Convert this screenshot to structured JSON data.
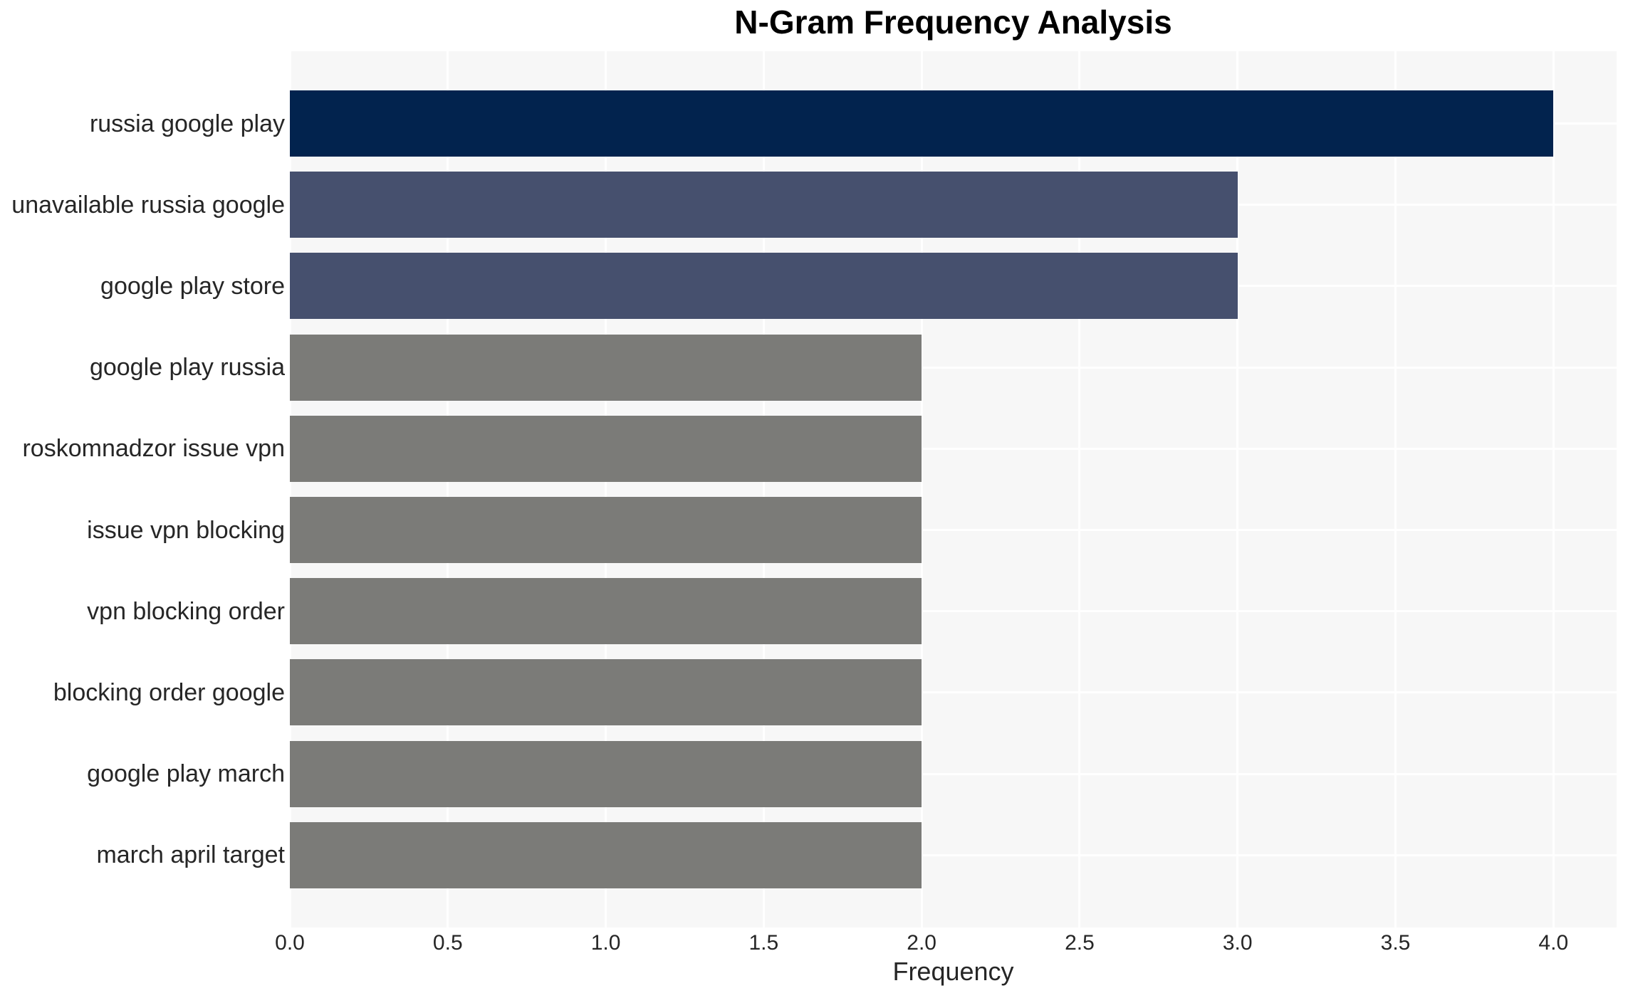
{
  "chart_data": {
    "type": "bar",
    "orientation": "horizontal",
    "title": "N-Gram Frequency Analysis",
    "xlabel": "Frequency",
    "ylabel": "",
    "categories": [
      "russia google play",
      "unavailable russia google",
      "google play store",
      "google play russia",
      "roskomnadzor issue vpn",
      "issue vpn blocking",
      "vpn blocking order",
      "blocking order google",
      "google play march",
      "march april target"
    ],
    "values": [
      4.0,
      3.0,
      3.0,
      2.0,
      2.0,
      2.0,
      2.0,
      2.0,
      2.0,
      2.0
    ],
    "bar_colors": [
      "#02234E",
      "#46506E",
      "#46506E",
      "#7B7B78",
      "#7B7B78",
      "#7B7B78",
      "#7B7B78",
      "#7B7B78",
      "#7B7B78",
      "#7B7B78"
    ],
    "xlim": [
      0.0,
      4.2
    ],
    "xticks": [
      0.0,
      0.5,
      1.0,
      1.5,
      2.0,
      2.5,
      3.0,
      3.5,
      4.0
    ],
    "xtick_labels": [
      "0.0",
      "0.5",
      "1.0",
      "1.5",
      "2.0",
      "2.5",
      "3.0",
      "3.5",
      "4.0"
    ],
    "grid": true,
    "legend": "none",
    "plot_background": "#F7F7F7",
    "grid_color": "#FFFFFF",
    "text_color": "#262626",
    "title_color": "#000000"
  }
}
